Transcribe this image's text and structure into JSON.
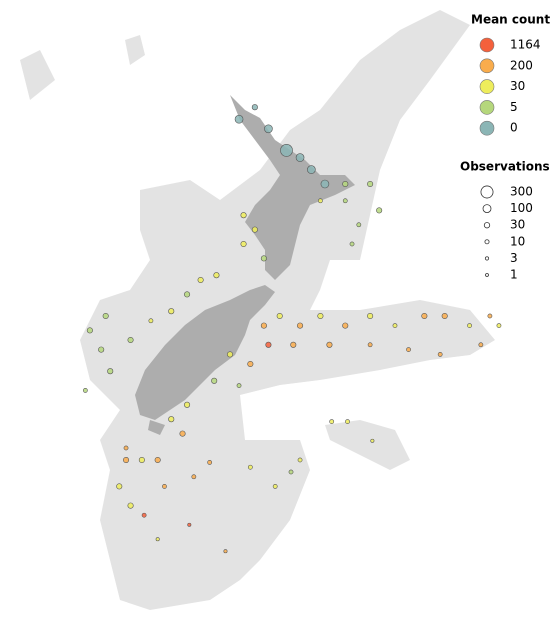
{
  "chart_data": {
    "type": "bubble-map",
    "color_legend": {
      "title": "Mean count",
      "levels": [
        {
          "value": 1164,
          "color": "#f4603c"
        },
        {
          "value": 200,
          "color": "#f9ac4c"
        },
        {
          "value": 30,
          "color": "#eeed5c"
        },
        {
          "value": 5,
          "color": "#b5d77c"
        },
        {
          "value": 0,
          "color": "#8bb5b5"
        }
      ]
    },
    "size_legend": {
      "title": "Observations",
      "values": [
        300,
        100,
        30,
        10,
        3,
        1
      ]
    },
    "points": {
      "lon": [
        173.1,
        173.8,
        174.4,
        175.2,
        175.8,
        176.3,
        176.9,
        177.8,
        178.9,
        179.3,
        178.4,
        178.1,
        173.3,
        173.8,
        173.3,
        174.2,
        172.1,
        171.4,
        170.8,
        170.1,
        167.2,
        166.5,
        167.0,
        167.4,
        168.3,
        169.2,
        166.3,
        174.2,
        174.9,
        175.8,
        176.7,
        177.8,
        178.9,
        180.0,
        181.3,
        182.2,
        183.3,
        184.2,
        184.6,
        174.4,
        175.5,
        177.1,
        178.9,
        180.6,
        182.0,
        183.8,
        172.7,
        173.6,
        172.0,
        173.1,
        170.8,
        170.1,
        170.6,
        168.1,
        168.1,
        168.8,
        169.5,
        167.8,
        168.3,
        168.9,
        169.8,
        171.1,
        171.8,
        173.6,
        174.7,
        175.4,
        175.8,
        170.9,
        172.5,
        169.5,
        177.2,
        177.9,
        179.0,
        176.7,
        177.8
      ],
      "lat": [
        -35.2,
        -34.7,
        -35.6,
        -36.5,
        -36.8,
        -37.3,
        -37.9,
        -37.9,
        -37.9,
        -39.0,
        -39.6,
        -40.4,
        -39.2,
        -39.8,
        -40.4,
        -41.0,
        -41.7,
        -41.9,
        -42.5,
        -43.2,
        -43.4,
        -44.0,
        -44.8,
        -45.7,
        -44.4,
        -43.6,
        -46.5,
        -43.8,
        -43.4,
        -43.8,
        -43.4,
        -43.8,
        -43.4,
        -43.8,
        -43.4,
        -43.4,
        -43.8,
        -43.4,
        -43.8,
        -44.6,
        -44.6,
        -44.6,
        -44.6,
        -44.8,
        -45.0,
        -44.6,
        -45.0,
        -45.4,
        -46.1,
        -46.3,
        -47.1,
        -47.7,
        -48.3,
        -48.9,
        -49.4,
        -49.4,
        -49.4,
        -50.5,
        -51.3,
        -51.7,
        -50.5,
        -50.1,
        -49.5,
        -49.7,
        -50.5,
        -49.9,
        -49.4,
        -52.1,
        -53.2,
        -52.7,
        -47.8,
        -47.8,
        -48.6,
        -38.6,
        -38.6
      ],
      "mean": [
        0,
        0,
        0,
        0,
        0,
        0,
        0,
        5,
        5,
        5,
        5,
        5,
        30,
        30,
        30,
        5,
        30,
        30,
        5,
        30,
        5,
        5,
        5,
        5,
        5,
        30,
        5,
        200,
        30,
        200,
        30,
        200,
        30,
        30,
        200,
        200,
        30,
        200,
        30,
        1164,
        200,
        200,
        200,
        200,
        200,
        200,
        30,
        200,
        5,
        5,
        30,
        30,
        200,
        200,
        200,
        30,
        200,
        30,
        30,
        1164,
        200,
        200,
        200,
        30,
        30,
        5,
        30,
        1164,
        200,
        30,
        30,
        30,
        30,
        30,
        5
      ],
      "obs": [
        100,
        30,
        100,
        300,
        100,
        100,
        100,
        30,
        30,
        30,
        10,
        10,
        30,
        30,
        30,
        30,
        30,
        30,
        30,
        30,
        30,
        30,
        30,
        30,
        30,
        10,
        10,
        30,
        30,
        30,
        30,
        30,
        30,
        10,
        30,
        30,
        10,
        10,
        10,
        30,
        30,
        30,
        10,
        10,
        10,
        10,
        30,
        30,
        30,
        10,
        30,
        30,
        30,
        10,
        30,
        30,
        30,
        30,
        30,
        10,
        10,
        10,
        10,
        10,
        10,
        10,
        10,
        3,
        3,
        3,
        10,
        10,
        3,
        10,
        10
      ]
    }
  }
}
